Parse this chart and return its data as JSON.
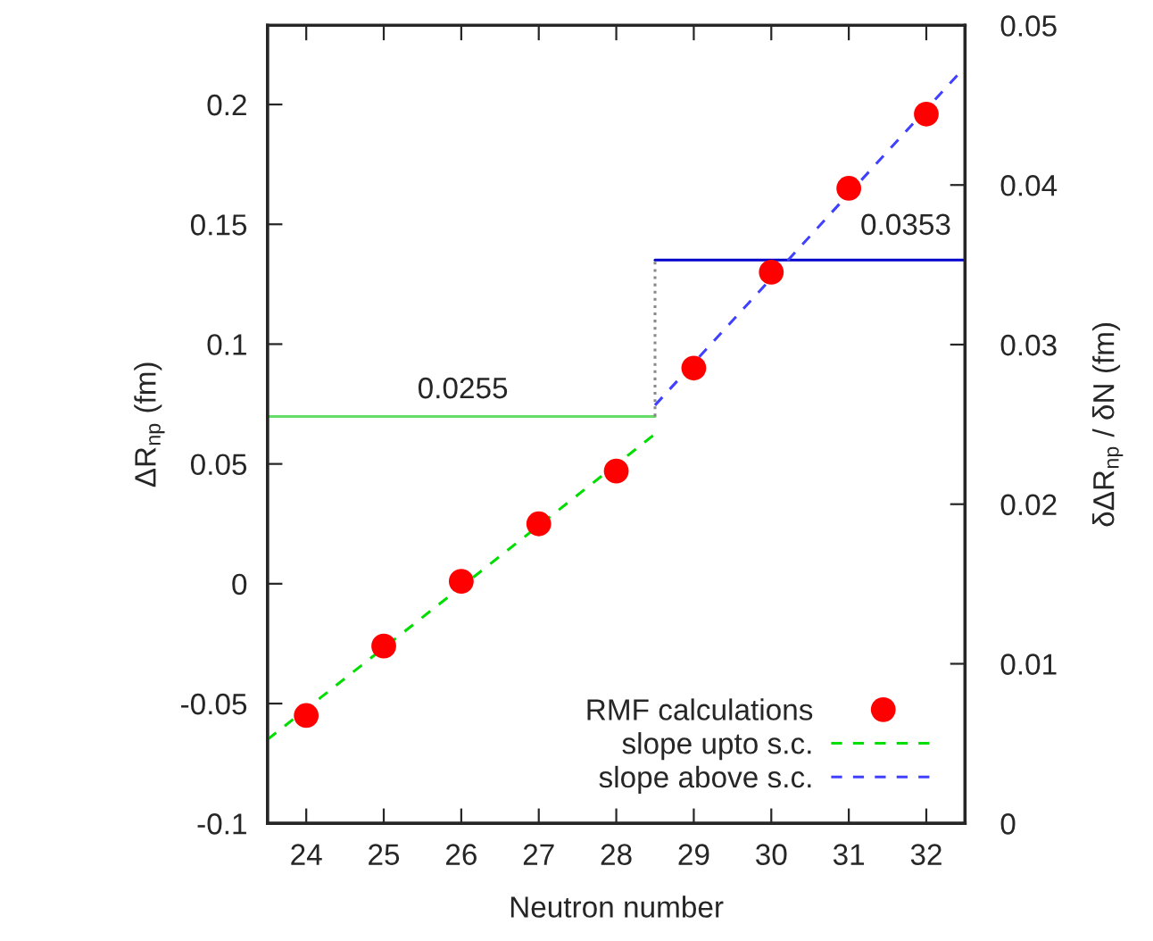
{
  "chart_data": {
    "type": "scatter",
    "xlabel": "Neutron number",
    "ylabel": "ΔR$_{np}$ (fm)",
    "y2label": "δΔR$_{np}$ / δN (fm)",
    "xlim": [
      23.5,
      32.5
    ],
    "xticks": [
      24,
      25,
      26,
      27,
      28,
      29,
      30,
      31,
      32
    ],
    "ylim": [
      -0.1,
      0.233
    ],
    "yticks": [
      -0.1,
      -0.05,
      0,
      0.05,
      0.1,
      0.15,
      0.2
    ],
    "y2lim": [
      0,
      0.05
    ],
    "y2ticks": [
      0,
      0.01,
      0.02,
      0.03,
      0.04,
      0.05
    ],
    "grid": false,
    "legend": "bottom right",
    "series": [
      {
        "name": "RMF calculations",
        "marker": "circle",
        "color": "#ff0000",
        "x": [
          24,
          25,
          26,
          27,
          28,
          29,
          30,
          31,
          32
        ],
        "values": [
          -0.055,
          -0.026,
          0.001,
          0.025,
          0.047,
          0.09,
          0.13,
          0.165,
          0.196
        ]
      },
      {
        "name": "slope upto s.c.",
        "type": "line",
        "line_style": "dashed",
        "color": "#00dd00",
        "x": [
          23.5,
          28.5
        ],
        "values": [
          -0.065,
          0.0625
        ]
      },
      {
        "name": "slope above s.c.",
        "type": "line",
        "line_style": "dashed",
        "color": "#4040ff",
        "x": [
          28.5,
          32.5
        ],
        "values": [
          0.0745,
          0.2157
        ]
      },
      {
        "type": "line",
        "axis": "y2",
        "line_style": "solid",
        "color": "#66dd66",
        "x": [
          23.5,
          28.5
        ],
        "values": [
          0.0255,
          0.0255
        ]
      },
      {
        "type": "line",
        "axis": "y2",
        "line_style": "solid",
        "color": "#0000cc",
        "x": [
          28.5,
          32.5
        ],
        "values": [
          0.0353,
          0.0353
        ]
      },
      {
        "type": "line",
        "axis": "y2",
        "line_style": "dotted",
        "color": "#888888",
        "x": [
          28.5,
          28.5
        ],
        "values": [
          0.0255,
          0.0353
        ]
      }
    ],
    "annotations": [
      "0.0255",
      "0.0353"
    ]
  }
}
